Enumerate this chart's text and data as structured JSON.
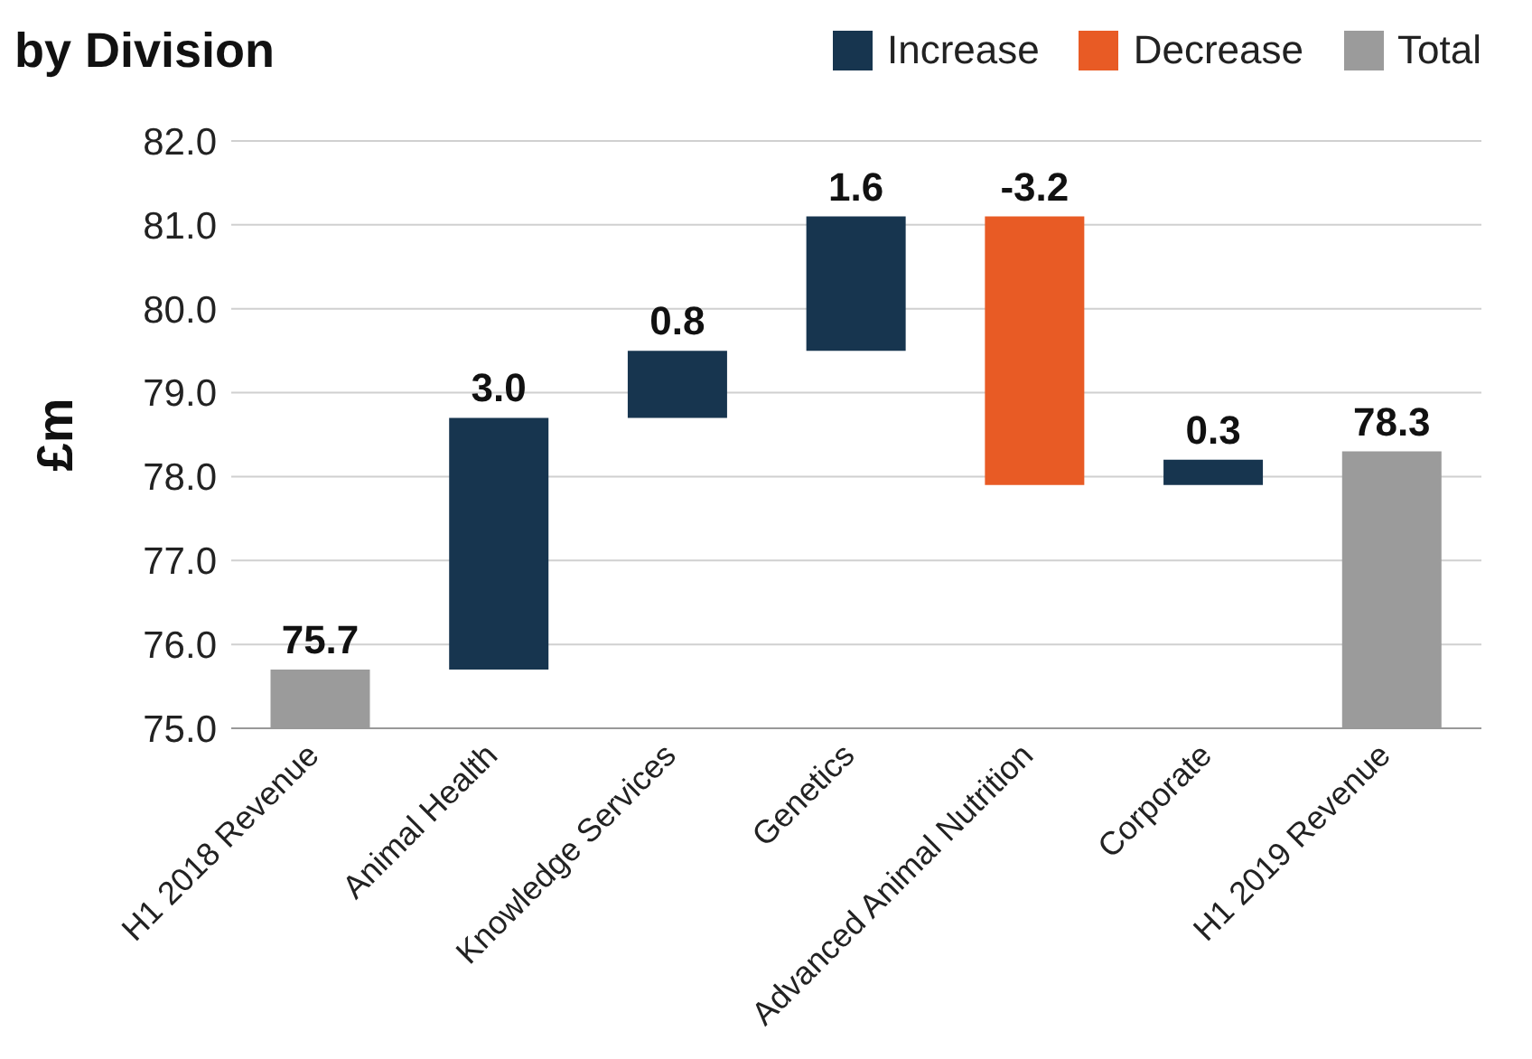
{
  "chart_data": {
    "type": "bar",
    "title": "by Division",
    "ylabel": "£m",
    "categories": [
      "H1 2018 Revenue",
      "Animal Health",
      "Knowledge Services",
      "Genetics",
      "Advanced Animal Nutrition",
      "Corporate",
      "H1 2019 Revenue"
    ],
    "series": [
      {
        "name": "Increase",
        "color": "#17354f",
        "values": [
          null,
          3.0,
          0.8,
          1.6,
          null,
          0.3,
          null
        ],
        "base": [
          null,
          75.7,
          78.7,
          79.5,
          null,
          77.9,
          null
        ]
      },
      {
        "name": "Decrease",
        "color": "#e85b25",
        "values": [
          null,
          null,
          null,
          null,
          -3.2,
          null,
          null
        ],
        "base": [
          null,
          null,
          null,
          null,
          81.1,
          null,
          null
        ]
      },
      {
        "name": "Total",
        "color": "#9b9b9b",
        "values": [
          75.7,
          null,
          null,
          null,
          null,
          null,
          78.3
        ]
      }
    ],
    "value_labels": [
      "75.7",
      "3.0",
      "0.8",
      "1.6",
      "-3.2",
      "0.3",
      "78.3"
    ],
    "ylim": [
      75,
      82
    ],
    "yticks": [
      {
        "value": 75,
        "label": "75.0"
      },
      {
        "value": 76,
        "label": "76.0"
      },
      {
        "value": 77,
        "label": "77.0"
      },
      {
        "value": 78,
        "label": "78.0"
      },
      {
        "value": 79,
        "label": "79.0"
      },
      {
        "value": 80,
        "label": "80.0"
      },
      {
        "value": 81,
        "label": "81.0"
      },
      {
        "value": 82,
        "label": "82.0"
      }
    ],
    "grid": "y",
    "legend": "top right"
  }
}
